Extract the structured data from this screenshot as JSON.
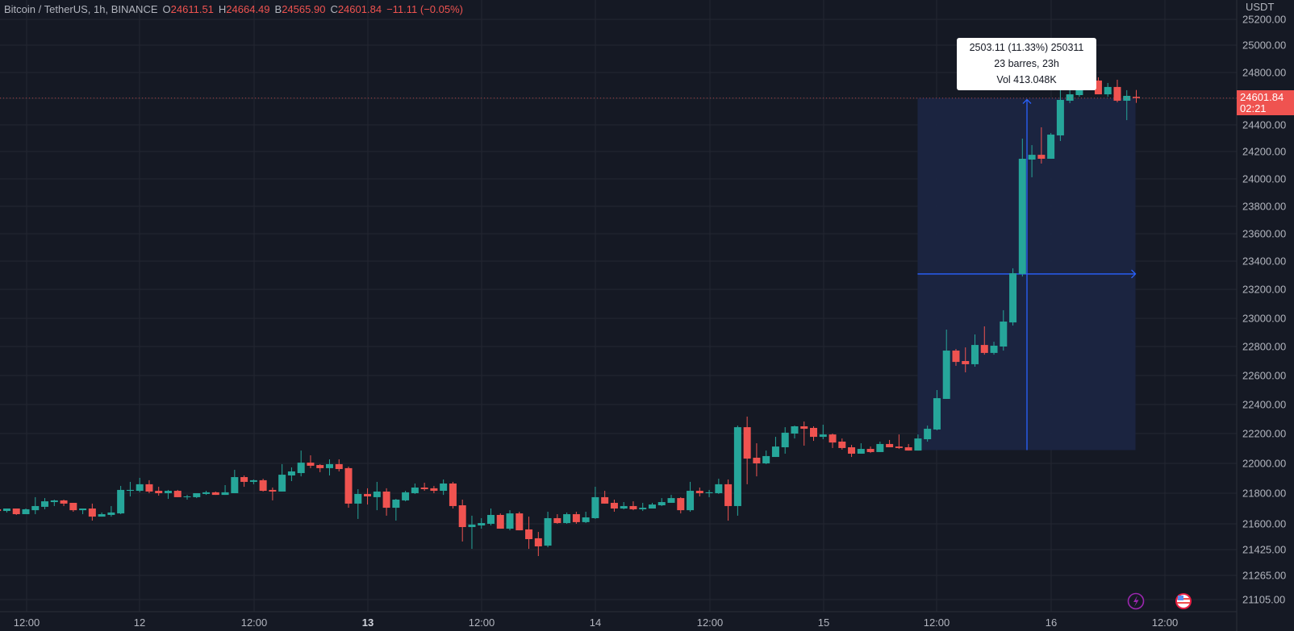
{
  "legend": {
    "symbol": "Bitcoin / TetherUS, 1h, BINANCE",
    "open_label": "O",
    "open": "24611.51",
    "high_label": "H",
    "high": "24664.49",
    "low_label": "B",
    "low": "24565.90",
    "close_label": "C",
    "close": "24601.84",
    "change": "−11.11 (−0.05%)"
  },
  "price_axis": {
    "unit": "USDT",
    "last_price": "24601.84",
    "countdown": "02:21",
    "ticks": [
      "25200.00",
      "25000.00",
      "24800.00",
      "24600.00",
      "24400.00",
      "24200.00",
      "24000.00",
      "23800.00",
      "23600.00",
      "23400.00",
      "23200.00",
      "23000.00",
      "22800.00",
      "22600.00",
      "22400.00",
      "22200.00",
      "22000.00",
      "21800.00",
      "21600.00",
      "21425.00",
      "21265.00",
      "21105.00"
    ]
  },
  "time_axis": {
    "labels": [
      "12:00",
      "12",
      "12:00",
      "13",
      "12:00",
      "14",
      "12:00",
      "15",
      "12:00",
      "16",
      "12:00"
    ],
    "bold": [
      "13"
    ]
  },
  "measure_tool": {
    "line1": "2503.11 (11.33%) 250311",
    "line2": "23 barres, 23h",
    "line3": "Vol 413.048K"
  },
  "icons": [
    "lightning-event-icon",
    "us-flag-event-icon"
  ],
  "colors": {
    "background": "#151924",
    "up": "#26a69a",
    "down": "#ef5350",
    "grid": "#232632",
    "measure_fill": "#1b2542",
    "measure_line": "#2962ff",
    "event_purple": "#9c27b0",
    "event_red": "#e91e43"
  },
  "chart_data": {
    "type": "candlestick",
    "interval": "1h",
    "first_bar": "11 10:00",
    "ohlc": [
      [
        21695,
        21700,
        21679,
        21684
      ],
      [
        21684,
        21700,
        21674,
        21700
      ],
      [
        21700,
        21700,
        21658,
        21663
      ],
      [
        21663,
        21700,
        21663,
        21695
      ],
      [
        21689,
        21774,
        21663,
        21716
      ],
      [
        21711,
        21768,
        21695,
        21747
      ],
      [
        21742,
        21758,
        21716,
        21753
      ],
      [
        21753,
        21758,
        21716,
        21732
      ],
      [
        21737,
        21737,
        21679,
        21689
      ],
      [
        21689,
        21700,
        21663,
        21700
      ],
      [
        21700,
        21732,
        21621,
        21647
      ],
      [
        21647,
        21674,
        21647,
        21663
      ],
      [
        21658,
        21716,
        21647,
        21674
      ],
      [
        21668,
        21849,
        21663,
        21822
      ],
      [
        21816,
        21876,
        21779,
        21822
      ],
      [
        21816,
        21903,
        21806,
        21860
      ],
      [
        21860,
        21887,
        21800,
        21811
      ],
      [
        21816,
        21843,
        21784,
        21800
      ],
      [
        21800,
        21822,
        21763,
        21816
      ],
      [
        21816,
        21822,
        21774,
        21774
      ],
      [
        21774,
        21789,
        21758,
        21779
      ],
      [
        21774,
        21800,
        21768,
        21800
      ],
      [
        21795,
        21816,
        21789,
        21806
      ],
      [
        21806,
        21811,
        21789,
        21789
      ],
      [
        21789,
        21854,
        21789,
        21806
      ],
      [
        21800,
        21957,
        21800,
        21908
      ],
      [
        21908,
        21919,
        21843,
        21876
      ],
      [
        21876,
        21892,
        21860,
        21887
      ],
      [
        21887,
        21897,
        21811,
        21816
      ],
      [
        21822,
        21838,
        21753,
        21811
      ],
      [
        21811,
        21995,
        21811,
        21924
      ],
      [
        21919,
        21973,
        21881,
        21946
      ],
      [
        21935,
        22086,
        21913,
        22005
      ],
      [
        22005,
        22054,
        21968,
        21984
      ],
      [
        21989,
        21995,
        21941,
        21968
      ],
      [
        21968,
        22027,
        21919,
        21995
      ],
      [
        21995,
        22027,
        21946,
        21962
      ],
      [
        21968,
        21978,
        21705,
        21732
      ],
      [
        21732,
        21827,
        21632,
        21795
      ],
      [
        21795,
        21833,
        21726,
        21779
      ],
      [
        21774,
        21876,
        21689,
        21811
      ],
      [
        21811,
        21833,
        21653,
        21705
      ],
      [
        21705,
        21763,
        21621,
        21758
      ],
      [
        21753,
        21816,
        21747,
        21806
      ],
      [
        21800,
        21865,
        21795,
        21838
      ],
      [
        21838,
        21870,
        21816,
        21827
      ],
      [
        21833,
        21849,
        21800,
        21816
      ],
      [
        21816,
        21892,
        21789,
        21865
      ],
      [
        21865,
        21876,
        21700,
        21716
      ],
      [
        21721,
        21758,
        21480,
        21578
      ],
      [
        21578,
        21653,
        21430,
        21595
      ],
      [
        21589,
        21637,
        21567,
        21605
      ],
      [
        21600,
        21700,
        21589,
        21658
      ],
      [
        21658,
        21668,
        21567,
        21567
      ],
      [
        21567,
        21689,
        21556,
        21668
      ],
      [
        21668,
        21679,
        21556,
        21556
      ],
      [
        21562,
        21647,
        21430,
        21496
      ],
      [
        21502,
        21545,
        21385,
        21447
      ],
      [
        21452,
        21679,
        21441,
        21637
      ],
      [
        21637,
        21663,
        21600,
        21605
      ],
      [
        21605,
        21674,
        21600,
        21663
      ],
      [
        21663,
        21679,
        21600,
        21611
      ],
      [
        21611,
        21679,
        21605,
        21642
      ],
      [
        21637,
        21843,
        21632,
        21774
      ],
      [
        21774,
        21816,
        21732,
        21732
      ],
      [
        21737,
        21758,
        21679,
        21700
      ],
      [
        21700,
        21742,
        21695,
        21716
      ],
      [
        21716,
        21747,
        21689,
        21695
      ],
      [
        21695,
        21737,
        21684,
        21705
      ],
      [
        21700,
        21737,
        21700,
        21726
      ],
      [
        21721,
        21768,
        21716,
        21742
      ],
      [
        21737,
        21789,
        21737,
        21768
      ],
      [
        21768,
        21774,
        21668,
        21689
      ],
      [
        21689,
        21876,
        21679,
        21816
      ],
      [
        21816,
        21838,
        21779,
        21800
      ],
      [
        21800,
        21822,
        21774,
        21806
      ],
      [
        21800,
        21897,
        21795,
        21860
      ],
      [
        21860,
        21892,
        21621,
        21716
      ],
      [
        21716,
        22255,
        21653,
        22244
      ],
      [
        22244,
        22317,
        21860,
        22032
      ],
      [
        22038,
        22135,
        21913,
        22000
      ],
      [
        22000,
        22086,
        21995,
        22049
      ],
      [
        22043,
        22178,
        22043,
        22113
      ],
      [
        22108,
        22244,
        22065,
        22206
      ],
      [
        22200,
        22255,
        22167,
        22250
      ],
      [
        22250,
        22283,
        22119,
        22233
      ],
      [
        22239,
        22250,
        22151,
        22178
      ],
      [
        22178,
        22261,
        22162,
        22194
      ],
      [
        22194,
        22200,
        22103,
        22140
      ],
      [
        22146,
        22167,
        22092,
        22103
      ],
      [
        22108,
        22124,
        22043,
        22065
      ],
      [
        22065,
        22135,
        22065,
        22097
      ],
      [
        22097,
        22113,
        22070,
        22076
      ],
      [
        22076,
        22146,
        22076,
        22130
      ],
      [
        22130,
        22157,
        22108,
        22108
      ],
      [
        22113,
        22194,
        22097,
        22103
      ],
      [
        22108,
        22130,
        22086,
        22086
      ],
      [
        22086,
        22194,
        22086,
        22167
      ],
      [
        22162,
        22255,
        22146,
        22233
      ],
      [
        22228,
        22500,
        22222,
        22444
      ],
      [
        22439,
        22920,
        22439,
        22772
      ],
      [
        22772,
        22783,
        22667,
        22694
      ],
      [
        22700,
        22794,
        22622,
        22678
      ],
      [
        22678,
        22886,
        22661,
        22811
      ],
      [
        22811,
        22943,
        22744,
        22756
      ],
      [
        22756,
        22834,
        22744,
        22806
      ],
      [
        22800,
        23056,
        22772,
        22977
      ],
      [
        22971,
        23349,
        22949,
        23314
      ],
      [
        23309,
        24297,
        23291,
        24147
      ],
      [
        24141,
        24248,
        24012,
        24176
      ],
      [
        24176,
        24382,
        24112,
        24147
      ],
      [
        24147,
        24339,
        24147,
        24327
      ],
      [
        24321,
        24915,
        24279,
        24588
      ],
      [
        24582,
        24688,
        24564,
        24631
      ],
      [
        24625,
        24750,
        24612,
        24694
      ],
      [
        24688,
        24769,
        24663,
        24738
      ],
      [
        24738,
        24763,
        24631,
        24631
      ],
      [
        24631,
        24719,
        24612,
        24688
      ],
      [
        24688,
        24744,
        24570,
        24582
      ],
      [
        24582,
        24663,
        24436,
        24619
      ],
      [
        24611.51,
        24664.49,
        24565.9,
        24601.84
      ]
    ],
    "measure": {
      "from_bar": 98,
      "to_bar": 121,
      "price_from": 22100,
      "price_to": 24603,
      "mid_price": 23309
    }
  }
}
